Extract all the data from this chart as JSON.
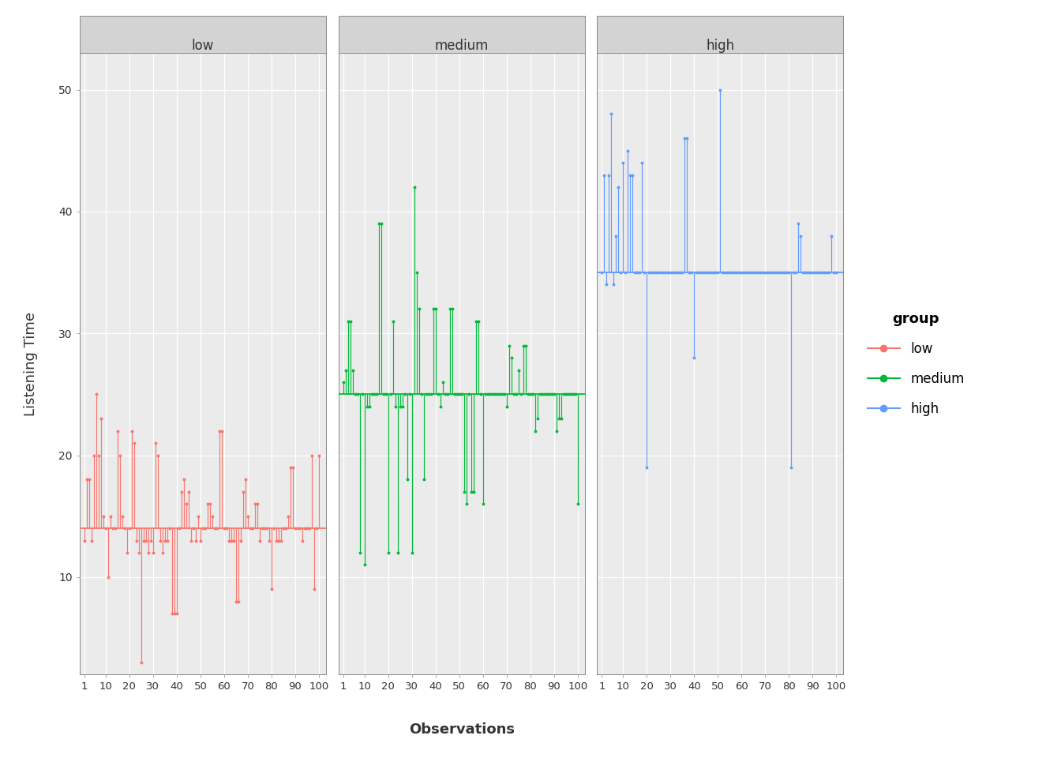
{
  "ylabel": "Listening Time",
  "xlabel": "Observations",
  "groups": [
    "low",
    "medium",
    "high"
  ],
  "group_means": [
    14.0,
    25.0,
    35.0
  ],
  "group_colors": [
    "#F8766D",
    "#00BA38",
    "#619CFF"
  ],
  "ylim": [
    2,
    53
  ],
  "yticks": [
    10,
    20,
    30,
    40,
    50
  ],
  "xticks": [
    1,
    10,
    20,
    30,
    40,
    50,
    60,
    70,
    80,
    90,
    100
  ],
  "n_obs": 100,
  "low_values": [
    13,
    18,
    18,
    13,
    20,
    25,
    20,
    23,
    15,
    14,
    10,
    15,
    14,
    14,
    22,
    20,
    15,
    14,
    12,
    14,
    22,
    21,
    13,
    12,
    3,
    13,
    13,
    12,
    13,
    12,
    21,
    20,
    13,
    12,
    13,
    13,
    14,
    7,
    7,
    7,
    14,
    17,
    18,
    16,
    17,
    13,
    14,
    13,
    15,
    13,
    14,
    14,
    16,
    16,
    15,
    14,
    14,
    22,
    22,
    14,
    14,
    13,
    13,
    13,
    8,
    8,
    13,
    17,
    18,
    15,
    14,
    14,
    16,
    16,
    13,
    14,
    14,
    14,
    13,
    9,
    14,
    13,
    13,
    13,
    14,
    14,
    15,
    19,
    19,
    14,
    14,
    14,
    13,
    14,
    14,
    14,
    20,
    9,
    14,
    20
  ],
  "medium_values": [
    26,
    27,
    31,
    31,
    27,
    25,
    25,
    12,
    25,
    11,
    24,
    24,
    25,
    25,
    25,
    39,
    39,
    25,
    25,
    12,
    25,
    31,
    24,
    12,
    24,
    24,
    25,
    18,
    25,
    12,
    42,
    35,
    32,
    25,
    18,
    25,
    25,
    25,
    32,
    32,
    25,
    24,
    26,
    25,
    25,
    32,
    32,
    25,
    25,
    25,
    25,
    17,
    16,
    25,
    17,
    17,
    31,
    31,
    25,
    16,
    25,
    25,
    25,
    25,
    25,
    25,
    25,
    25,
    25,
    24,
    29,
    28,
    25,
    25,
    27,
    25,
    29,
    29,
    25,
    25,
    25,
    22,
    23,
    25,
    25,
    25,
    25,
    25,
    25,
    25,
    22,
    23,
    23,
    25,
    25,
    25,
    25,
    25,
    25,
    16
  ],
  "high_values": [
    35,
    43,
    34,
    43,
    48,
    34,
    38,
    42,
    35,
    44,
    35,
    45,
    43,
    43,
    35,
    35,
    35,
    44,
    35,
    19,
    35,
    35,
    35,
    35,
    35,
    35,
    35,
    35,
    35,
    35,
    35,
    35,
    35,
    35,
    35,
    46,
    46,
    35,
    35,
    28,
    35,
    35,
    35,
    35,
    35,
    35,
    35,
    35,
    35,
    35,
    50,
    35,
    35,
    35,
    35,
    35,
    35,
    35,
    35,
    35,
    35,
    35,
    35,
    35,
    35,
    35,
    35,
    35,
    35,
    35,
    35,
    35,
    35,
    35,
    35,
    35,
    35,
    35,
    35,
    35,
    19,
    35,
    35,
    39,
    38,
    35,
    35,
    35,
    35,
    35,
    35,
    35,
    35,
    35,
    35,
    35,
    35,
    38,
    35,
    35
  ],
  "panel_bg": "#EBEBEB",
  "grid_color": "#FFFFFF",
  "header_bg": "#D3D3D3",
  "legend_title": "group",
  "background_color": "#FFFFFF",
  "panel_border_color": "#AAAAAA"
}
